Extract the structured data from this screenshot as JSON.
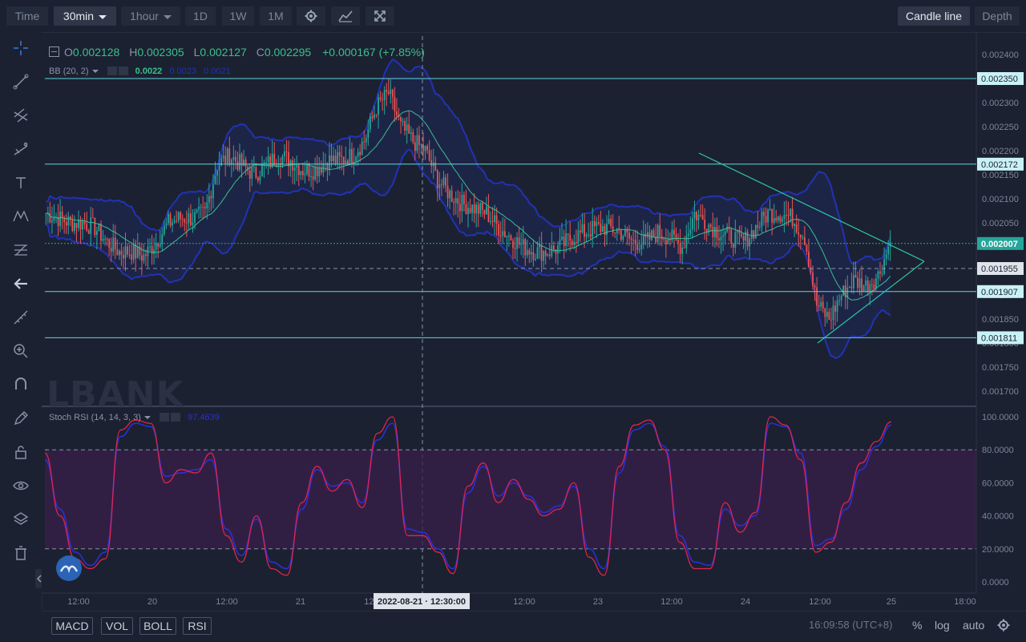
{
  "toolbar": {
    "time_label": "Time",
    "interval_selected": "30min",
    "interval_2": "1hour",
    "interval_1d": "1D",
    "interval_1w": "1W",
    "interval_1m": "1M",
    "chart_type_button": "Candle line",
    "depth_button": "Depth"
  },
  "icons": {
    "settings": "gear-icon",
    "indicators": "indicators-icon",
    "fullscreen": "fullscreen-icon"
  },
  "ohlc": {
    "o_label": "O",
    "o_value": "0.002128",
    "h_label": "H",
    "h_value": "0.002305",
    "l_label": "L",
    "l_value": "0.002127",
    "c_label": "C",
    "c_value": "0.002295",
    "change": "+0.000167 (+7.85%)"
  },
  "bb": {
    "label": "BB (20, 2)",
    "value_mid": "0.0022",
    "value_up": "0.0023",
    "value_low": "0.0021"
  },
  "stoch": {
    "label": "Stoch RSI (14, 14, 3, 3)",
    "value": "97.4639"
  },
  "watermark": "LBANK",
  "price_axis": [
    "0.002400",
    "0.002350",
    "0.002300",
    "0.002250",
    "0.002200",
    "0.002150",
    "0.002100",
    "0.002050",
    "0.002000",
    "0.001950",
    "0.001900",
    "0.001850",
    "0.001800",
    "0.001750",
    "0.001700"
  ],
  "price_labels": [
    {
      "text": "0.002350",
      "kind": "level"
    },
    {
      "text": "0.002172",
      "kind": "level"
    },
    {
      "text": "0.002007",
      "kind": "current"
    },
    {
      "text": "0.001955",
      "kind": "cross"
    },
    {
      "text": "0.001907",
      "kind": "level"
    },
    {
      "text": "0.001811",
      "kind": "level"
    }
  ],
  "rsi_axis": [
    "100.0000",
    "80.0000",
    "60.0000",
    "40.0000",
    "20.0000",
    "0.0000"
  ],
  "time_axis": [
    "12:00",
    "20",
    "12:00",
    "21",
    "12:00",
    "12:00",
    "23",
    "12:00",
    "24",
    "12:00",
    "25",
    "18:00"
  ],
  "crosshair_time": "2022-08-21 · 12:30:00",
  "bottom": {
    "macd": "MACD",
    "vol": "VOL",
    "boll": "BOLL",
    "rsi": "RSI",
    "clock": "16:09:58 (UTC+8)",
    "percent": "%",
    "log": "log",
    "auto": "auto"
  },
  "colors": {
    "up": "#26a69a",
    "down": "#ef5350",
    "band": "#2232b5",
    "mid": "#3bbf8f",
    "level": "#5fd5e0",
    "rsi_k": "#e0244f",
    "rsi_d": "#2b2fd6"
  },
  "chart_data": {
    "type": "candlestick",
    "symbol_interval": "30min",
    "x_range_dates": [
      "2022-08-19 06:00",
      "2022-08-25 20:00"
    ],
    "ylim": [
      0.00167,
      0.00241
    ],
    "horizontal_levels": [
      0.00235,
      0.002172,
      0.001907,
      0.001811
    ],
    "current_price": 0.002007,
    "close_series": [
      0.00207,
      0.00206,
      0.00205,
      0.00205,
      0.00204,
      0.00201,
      0.00199,
      0.00199,
      0.00198,
      0.00201,
      0.00205,
      0.00206,
      0.00206,
      0.00207,
      0.00217,
      0.00219,
      0.00217,
      0.00215,
      0.00217,
      0.00219,
      0.00218,
      0.00216,
      0.00216,
      0.00218,
      0.00218,
      0.00219,
      0.00222,
      0.00229,
      0.00232,
      0.00225,
      0.00222,
      0.0022,
      0.00214,
      0.00211,
      0.00209,
      0.00208,
      0.00207,
      0.00204,
      0.00202,
      0.002,
      0.00199,
      0.00199,
      0.002,
      0.00202,
      0.00203,
      0.00204,
      0.00204,
      0.00203,
      0.00201,
      0.00201,
      0.00203,
      0.00202,
      0.002,
      0.00207,
      0.00205,
      0.00203,
      0.00202,
      0.00201,
      0.00204,
      0.00207,
      0.00207,
      0.00206,
      0.00202,
      0.00188,
      0.00185,
      0.0019,
      0.00193,
      0.00192,
      0.00194,
      0.00201
    ],
    "stoch_rsi_k": [
      78,
      40,
      14,
      8,
      14,
      92,
      98,
      96,
      60,
      68,
      66,
      78,
      28,
      12,
      40,
      8,
      4,
      48,
      70,
      55,
      62,
      45,
      90,
      100,
      28,
      28,
      18,
      5,
      58,
      72,
      48,
      62,
      50,
      40,
      44,
      60,
      15,
      4,
      70,
      95,
      98,
      80,
      24,
      8,
      8,
      48,
      30,
      42,
      100,
      95,
      74,
      18,
      24,
      48,
      72,
      85,
      97
    ],
    "stoch_rsi_d": [
      74,
      44,
      18,
      10,
      18,
      88,
      96,
      94,
      64,
      66,
      68,
      74,
      32,
      16,
      38,
      12,
      8,
      44,
      68,
      58,
      60,
      48,
      86,
      96,
      32,
      30,
      20,
      8,
      54,
      70,
      52,
      60,
      52,
      42,
      46,
      58,
      20,
      8,
      66,
      92,
      96,
      82,
      28,
      12,
      10,
      44,
      34,
      40,
      96,
      94,
      78,
      22,
      26,
      44,
      68,
      82,
      95
    ]
  }
}
